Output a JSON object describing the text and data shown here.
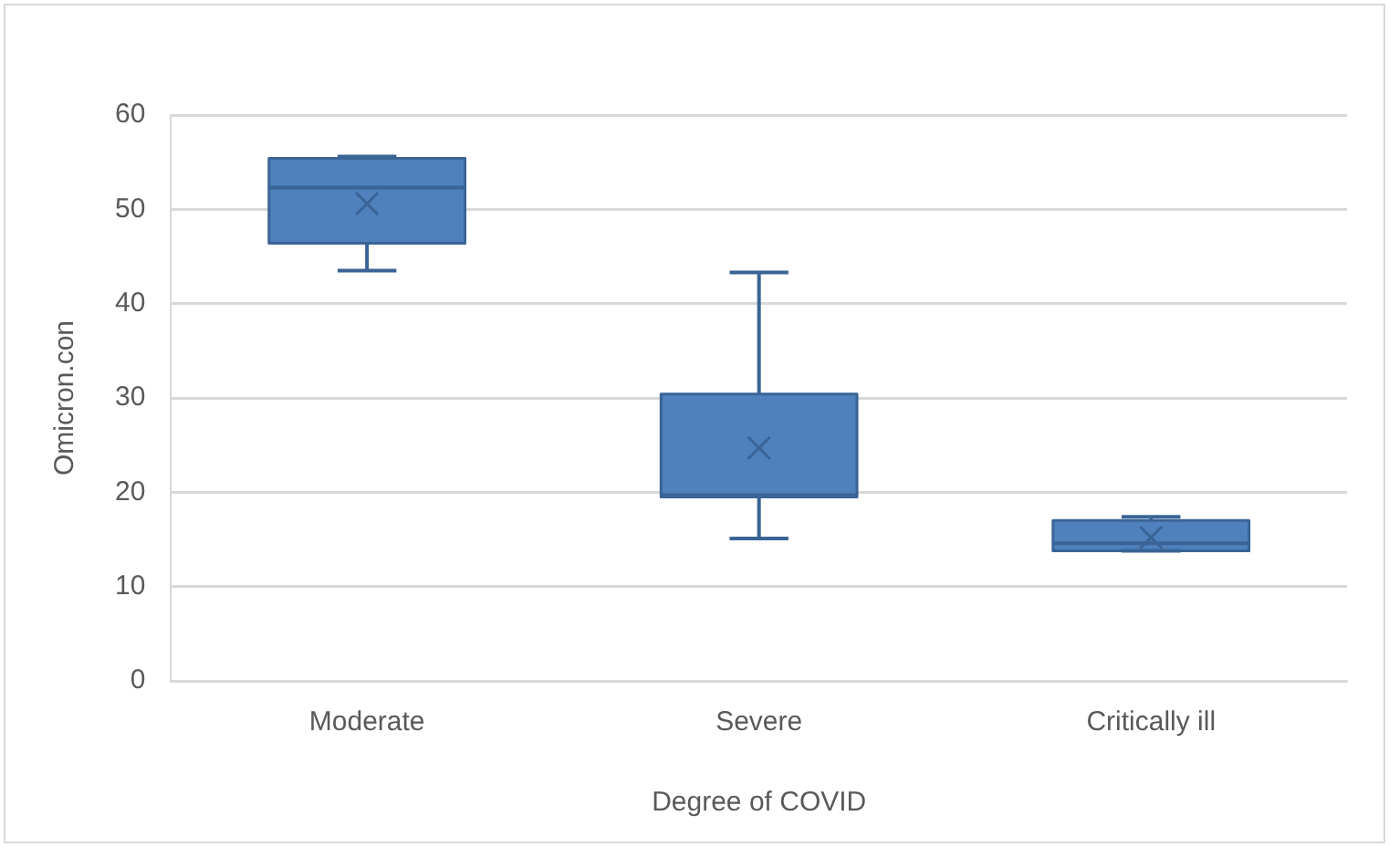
{
  "chart_data": {
    "type": "box",
    "xlabel": "Degree of COVID",
    "ylabel": "Omicron.con",
    "categories": [
      "Moderate",
      "Severe",
      "Critically ill"
    ],
    "color": "#4f81bd",
    "boxes": [
      {
        "low": 43.5,
        "q1": 46.4,
        "median": 52.3,
        "q3": 55.4,
        "high": 55.6,
        "mean": 50.6
      },
      {
        "low": 15.1,
        "q1": 19.5,
        "median": 19.7,
        "q3": 30.4,
        "high": 43.3,
        "mean": 24.7
      },
      {
        "low": 13.8,
        "q1": 13.8,
        "median": 14.6,
        "q3": 17.0,
        "high": 17.4,
        "mean": 15.2
      }
    ],
    "ylim": [
      0,
      60
    ],
    "yticks": [
      0,
      10,
      20,
      30,
      40,
      50,
      60
    ],
    "grid": "y",
    "legend": false
  }
}
